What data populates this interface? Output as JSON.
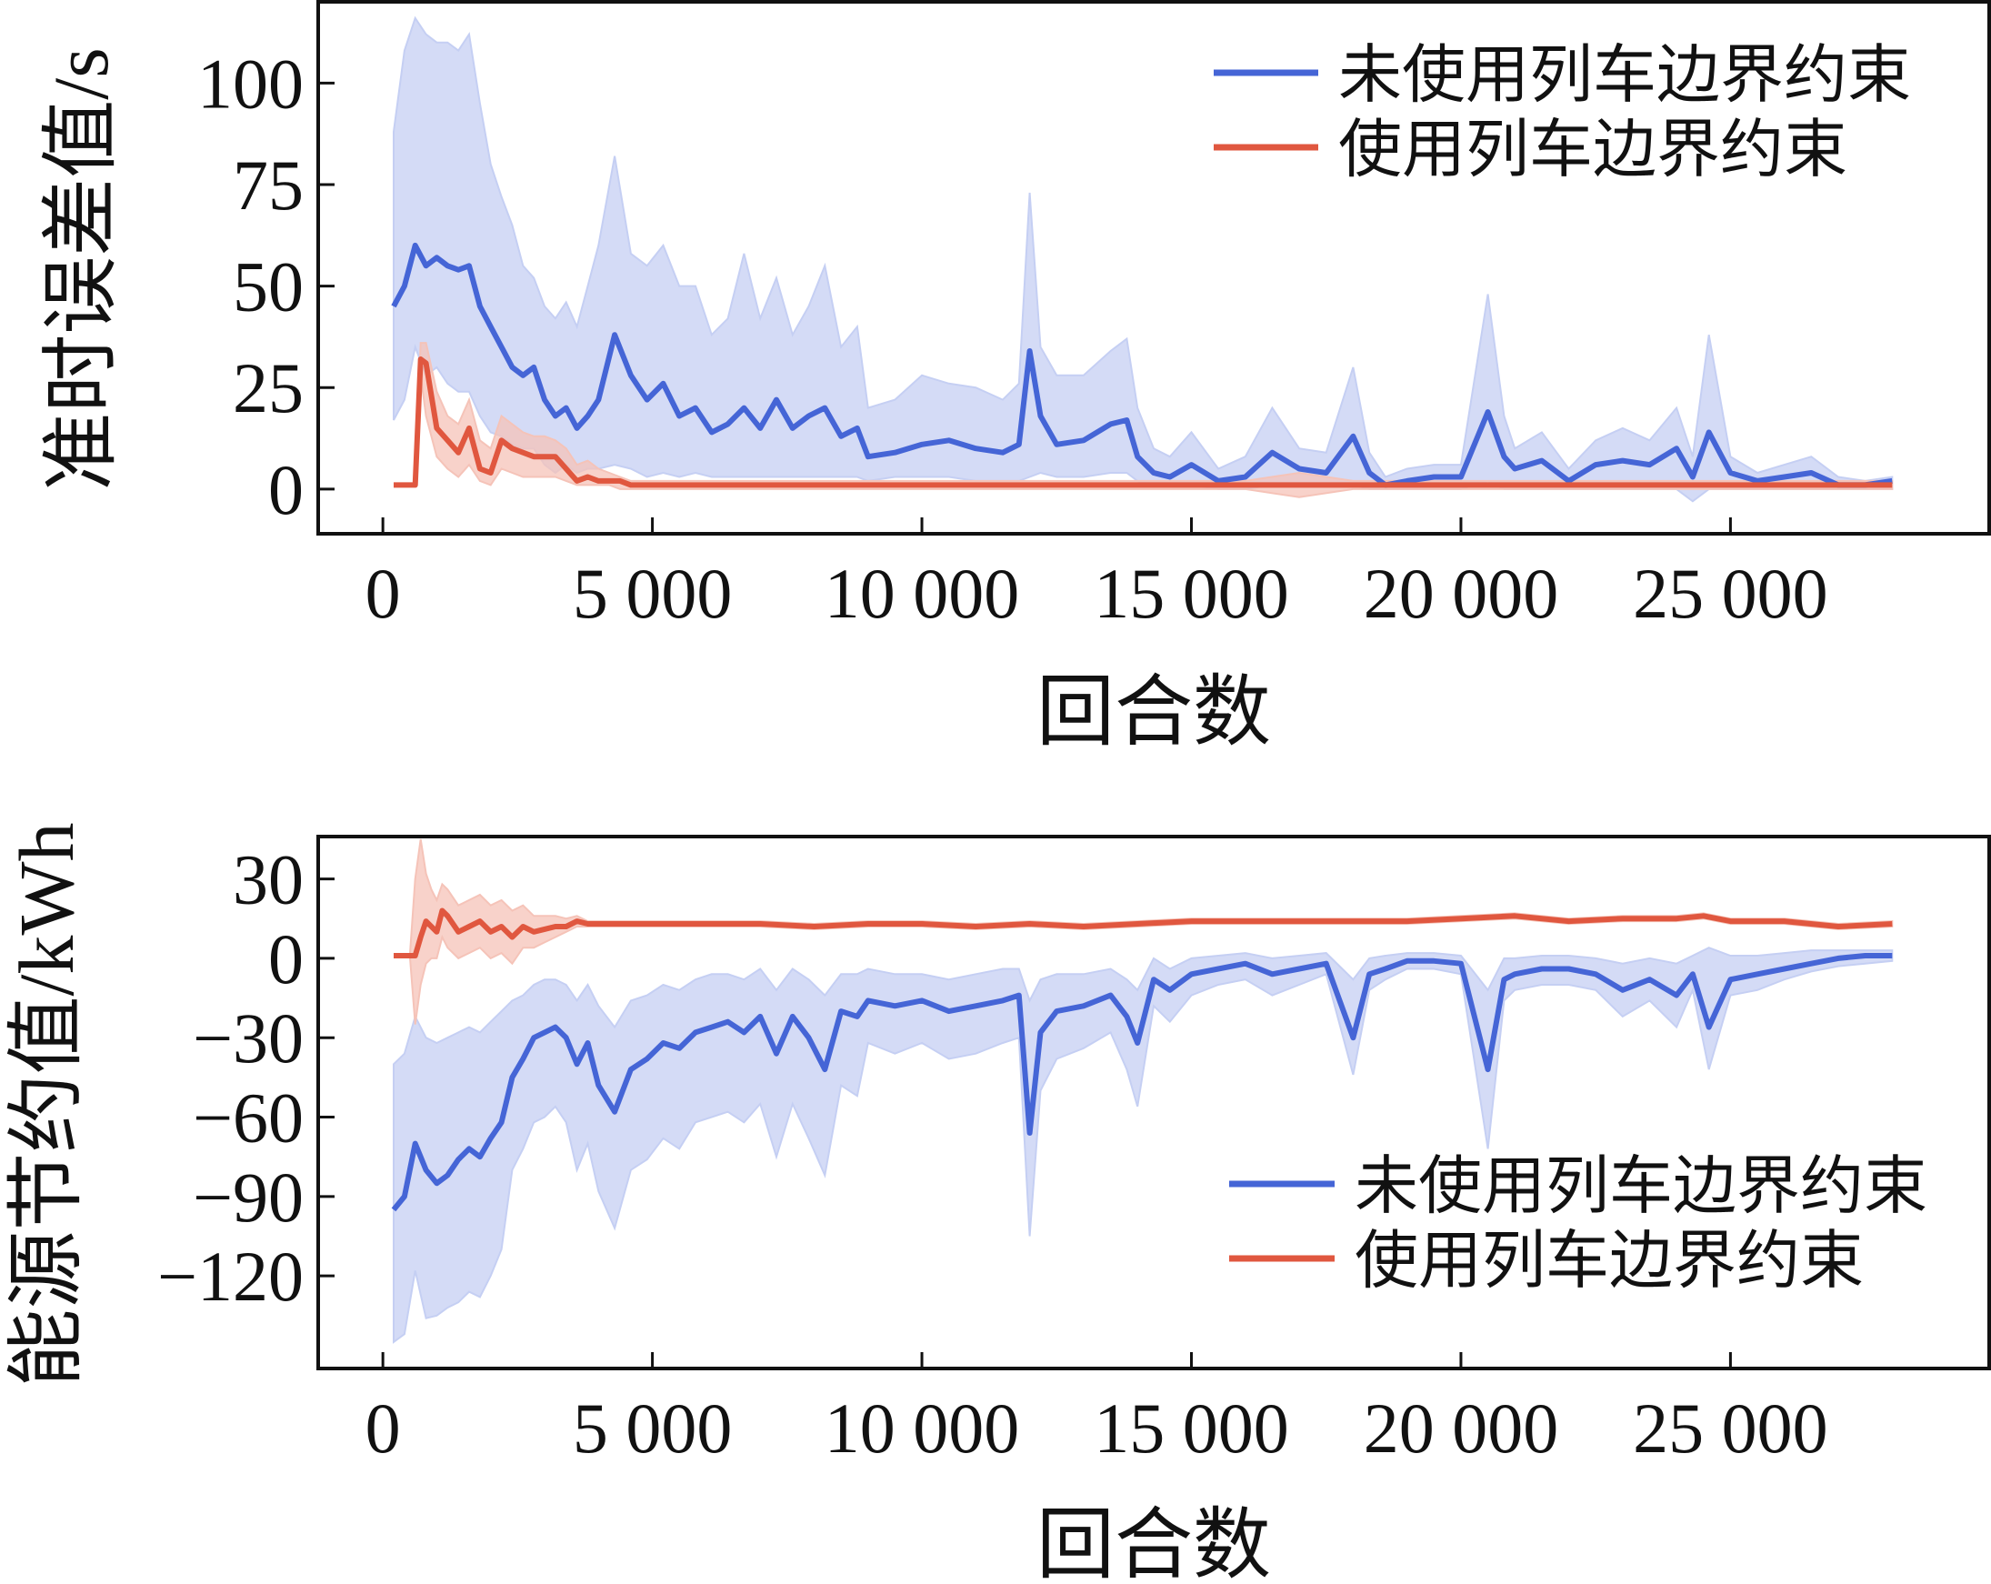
{
  "colors": {
    "blue": "#4565d6",
    "blue_band": "#c5cff3",
    "red": "#e0573f",
    "red_band": "#f5c3b8",
    "axis": "#111111"
  },
  "chart_data": [
    {
      "type": "line",
      "xlabel": "回合数",
      "ylabel": "准时误差值/s",
      "xlim": [
        -1200,
        29800
      ],
      "ylim": [
        -11,
        120
      ],
      "xticks": [
        0,
        5000,
        10000,
        15000,
        20000,
        25000
      ],
      "xtick_labels": [
        "0",
        "5 000",
        "10 000",
        "15 000",
        "20 000",
        "25 000"
      ],
      "yticks": [
        0,
        25,
        50,
        75,
        100
      ],
      "ytick_labels": [
        "0",
        "25",
        "50",
        "75",
        "100"
      ],
      "legend_position": "upper-right",
      "grid": false,
      "series": [
        {
          "name": "未使用列车边界约束",
          "color_key": "blue",
          "x": [
            200,
            400,
            600,
            800,
            1000,
            1200,
            1400,
            1600,
            1800,
            2000,
            2200,
            2400,
            2600,
            2800,
            3000,
            3200,
            3400,
            3600,
            3800,
            4000,
            4300,
            4600,
            4900,
            5200,
            5500,
            5800,
            6100,
            6400,
            6700,
            7000,
            7300,
            7600,
            7900,
            8200,
            8500,
            8800,
            9000,
            9500,
            10000,
            10500,
            11000,
            11500,
            11800,
            12000,
            12200,
            12500,
            13000,
            13500,
            13800,
            14000,
            14300,
            14600,
            15000,
            15500,
            16000,
            16500,
            17000,
            17500,
            18000,
            18300,
            18600,
            19000,
            19500,
            20000,
            20500,
            20800,
            21000,
            21500,
            22000,
            22500,
            23000,
            23500,
            24000,
            24300,
            24600,
            25000,
            25500,
            26000,
            26500,
            27000,
            27500,
            28000
          ],
          "values": [
            45,
            50,
            60,
            55,
            57,
            55,
            54,
            55,
            45,
            40,
            35,
            30,
            28,
            30,
            22,
            18,
            20,
            15,
            18,
            22,
            38,
            28,
            22,
            26,
            18,
            20,
            14,
            16,
            20,
            15,
            22,
            15,
            18,
            20,
            13,
            15,
            8,
            9,
            11,
            12,
            10,
            9,
            11,
            34,
            18,
            11,
            12,
            16,
            17,
            8,
            4,
            3,
            6,
            2,
            3,
            9,
            5,
            4,
            13,
            4,
            1,
            2,
            3,
            3,
            19,
            8,
            5,
            7,
            2,
            6,
            7,
            6,
            10,
            3,
            14,
            4,
            2,
            3,
            4,
            1,
            1,
            2
          ],
          "band_low": [
            17,
            22,
            35,
            28,
            30,
            26,
            24,
            24,
            18,
            14,
            13,
            11,
            10,
            10,
            6,
            4,
            6,
            4,
            5,
            5,
            6,
            5,
            3,
            4,
            3,
            4,
            3,
            3,
            3,
            3,
            3,
            3,
            3,
            3,
            3,
            3,
            2,
            3,
            3,
            3,
            2,
            2,
            2,
            3,
            4,
            3,
            3,
            4,
            4,
            2,
            1,
            1,
            1,
            0,
            0,
            1,
            1,
            1,
            1,
            0,
            0,
            0,
            0,
            0,
            2,
            0,
            0,
            0,
            0,
            0,
            0,
            0,
            0,
            -3,
            0,
            0,
            0,
            0,
            0,
            0,
            0,
            0
          ],
          "band_high": [
            88,
            108,
            116,
            112,
            110,
            110,
            108,
            112,
            95,
            80,
            72,
            65,
            55,
            52,
            45,
            42,
            46,
            40,
            50,
            60,
            82,
            58,
            55,
            60,
            50,
            50,
            38,
            42,
            58,
            42,
            52,
            38,
            45,
            55,
            35,
            40,
            20,
            22,
            28,
            26,
            25,
            22,
            26,
            73,
            35,
            28,
            28,
            34,
            37,
            20,
            10,
            8,
            14,
            5,
            8,
            20,
            10,
            9,
            30,
            9,
            3,
            5,
            6,
            6,
            48,
            18,
            10,
            14,
            5,
            12,
            15,
            12,
            20,
            8,
            38,
            8,
            4,
            6,
            8,
            3,
            2,
            3
          ]
        },
        {
          "name": "使用列车边界约束",
          "color_key": "red",
          "x": [
            200,
            400,
            600,
            700,
            800,
            1000,
            1200,
            1400,
            1600,
            1800,
            2000,
            2200,
            2400,
            2600,
            2800,
            3000,
            3200,
            3400,
            3600,
            3800,
            4000,
            4200,
            4400,
            4600,
            5000,
            6000,
            7000,
            8000,
            9000,
            10000,
            11000,
            12000,
            13000,
            14000,
            15000,
            16000,
            17000,
            18000,
            19000,
            20000,
            21000,
            22000,
            23000,
            24000,
            25000,
            26000,
            27000,
            28000
          ],
          "values": [
            1,
            1,
            1,
            32,
            31,
            15,
            12,
            9,
            15,
            5,
            4,
            12,
            10,
            9,
            8,
            8,
            8,
            5,
            2,
            3,
            2,
            2,
            2,
            1,
            1,
            1,
            1,
            1,
            1,
            1,
            1,
            1,
            1,
            1,
            1,
            1,
            1,
            1,
            1,
            1,
            1,
            1,
            1,
            1,
            1,
            1,
            1,
            1
          ],
          "band_low": [
            1,
            1,
            1,
            28,
            18,
            8,
            5,
            3,
            6,
            2,
            1,
            5,
            4,
            3,
            3,
            3,
            3,
            2,
            1,
            1,
            1,
            1,
            0,
            0,
            0,
            0,
            0,
            0,
            0,
            0,
            0,
            0,
            0,
            0,
            0,
            0,
            -2,
            0,
            0,
            0,
            0,
            0,
            0,
            0,
            0,
            0,
            0,
            0
          ],
          "band_high": [
            1,
            1,
            1,
            36,
            36,
            24,
            18,
            16,
            22,
            12,
            10,
            18,
            16,
            14,
            13,
            13,
            12,
            10,
            6,
            7,
            5,
            4,
            3,
            2,
            2,
            2,
            2,
            2,
            2,
            2,
            2,
            2,
            2,
            2,
            2,
            2,
            4,
            2,
            2,
            2,
            2,
            2,
            2,
            2,
            2,
            2,
            2,
            2
          ]
        }
      ]
    },
    {
      "type": "line",
      "xlabel": "回合数",
      "ylabel": "能源节约值/kWh",
      "xlim": [
        -1200,
        29800
      ],
      "ylim": [
        -155,
        46
      ],
      "xticks": [
        0,
        5000,
        10000,
        15000,
        20000,
        25000
      ],
      "xtick_labels": [
        "0",
        "5 000",
        "10 000",
        "15 000",
        "20 000",
        "25 000"
      ],
      "yticks": [
        -120,
        -90,
        -60,
        -30,
        0,
        30
      ],
      "ytick_labels": [
        "−120",
        "−90",
        "−60",
        "−30",
        "0",
        "30"
      ],
      "legend_position": "lower-right",
      "grid": false,
      "series": [
        {
          "name": "未使用列车边界约束",
          "color_key": "blue",
          "x": [
            200,
            400,
            600,
            800,
            1000,
            1200,
            1400,
            1600,
            1800,
            2000,
            2200,
            2400,
            2600,
            2800,
            3000,
            3200,
            3400,
            3600,
            3800,
            4000,
            4300,
            4600,
            4900,
            5200,
            5500,
            5800,
            6100,
            6400,
            6700,
            7000,
            7300,
            7600,
            7900,
            8200,
            8500,
            8800,
            9000,
            9500,
            10000,
            10500,
            11000,
            11500,
            11800,
            12000,
            12200,
            12500,
            13000,
            13500,
            13800,
            14000,
            14300,
            14600,
            15000,
            15500,
            16000,
            16500,
            17000,
            17500,
            18000,
            18300,
            18600,
            19000,
            19500,
            20000,
            20500,
            20800,
            21000,
            21500,
            22000,
            22500,
            23000,
            23500,
            24000,
            24300,
            24600,
            25000,
            25500,
            26000,
            26500,
            27000,
            27500,
            28000
          ],
          "values": [
            -95,
            -90,
            -70,
            -80,
            -85,
            -82,
            -76,
            -72,
            -75,
            -68,
            -62,
            -45,
            -38,
            -30,
            -28,
            -26,
            -30,
            -40,
            -32,
            -48,
            -58,
            -42,
            -38,
            -32,
            -34,
            -28,
            -26,
            -24,
            -28,
            -22,
            -36,
            -22,
            -30,
            -42,
            -20,
            -22,
            -16,
            -18,
            -16,
            -20,
            -18,
            -16,
            -14,
            -66,
            -28,
            -20,
            -18,
            -14,
            -22,
            -32,
            -8,
            -12,
            -6,
            -4,
            -2,
            -6,
            -4,
            -2,
            -30,
            -6,
            -4,
            -1,
            -1,
            -2,
            -42,
            -8,
            -6,
            -4,
            -4,
            -6,
            -12,
            -8,
            -14,
            -6,
            -26,
            -8,
            -6,
            -4,
            -2,
            0,
            1,
            1
          ],
          "band_low": [
            -145,
            -142,
            -118,
            -136,
            -135,
            -132,
            -130,
            -126,
            -128,
            -120,
            -110,
            -80,
            -72,
            -62,
            -60,
            -56,
            -62,
            -80,
            -70,
            -88,
            -102,
            -80,
            -76,
            -68,
            -72,
            -62,
            -60,
            -58,
            -62,
            -55,
            -75,
            -55,
            -68,
            -82,
            -48,
            -52,
            -32,
            -36,
            -32,
            -38,
            -36,
            -32,
            -30,
            -105,
            -50,
            -38,
            -34,
            -28,
            -42,
            -56,
            -18,
            -24,
            -14,
            -10,
            -8,
            -14,
            -10,
            -6,
            -44,
            -12,
            -8,
            -4,
            -4,
            -6,
            -72,
            -16,
            -12,
            -10,
            -10,
            -12,
            -22,
            -16,
            -26,
            -12,
            -42,
            -14,
            -12,
            -8,
            -5,
            -3,
            -2,
            -1
          ],
          "band_high": [
            -40,
            -36,
            -22,
            -30,
            -32,
            -30,
            -28,
            -26,
            -28,
            -24,
            -20,
            -16,
            -14,
            -10,
            -8,
            -8,
            -10,
            -16,
            -10,
            -18,
            -26,
            -16,
            -14,
            -10,
            -12,
            -8,
            -6,
            -6,
            -8,
            -4,
            -12,
            -4,
            -8,
            -14,
            -6,
            -6,
            -4,
            -6,
            -6,
            -8,
            -6,
            -4,
            -4,
            -16,
            -8,
            -6,
            -6,
            -4,
            -8,
            -12,
            0,
            -4,
            0,
            1,
            2,
            0,
            1,
            2,
            -8,
            0,
            1,
            2,
            2,
            1,
            -12,
            0,
            0,
            1,
            1,
            0,
            -2,
            0,
            -2,
            1,
            4,
            1,
            1,
            2,
            3,
            3,
            3,
            3
          ]
        },
        {
          "name": "使用列车边界约束",
          "color_key": "red",
          "x": [
            200,
            400,
            500,
            600,
            700,
            800,
            900,
            1000,
            1100,
            1200,
            1400,
            1600,
            1800,
            2000,
            2200,
            2400,
            2600,
            2800,
            3000,
            3200,
            3400,
            3600,
            3800,
            4000,
            4500,
            5000,
            6000,
            7000,
            8000,
            9000,
            10000,
            11000,
            12000,
            13000,
            14000,
            15000,
            16000,
            17000,
            18000,
            19000,
            20000,
            21000,
            22000,
            23000,
            24000,
            24500,
            25000,
            26000,
            27000,
            28000
          ],
          "values": [
            1,
            1,
            1,
            1,
            8,
            14,
            12,
            10,
            18,
            16,
            10,
            12,
            14,
            10,
            12,
            8,
            12,
            10,
            11,
            12,
            12,
            14,
            13,
            13,
            13,
            13,
            13,
            13,
            12,
            13,
            13,
            12,
            13,
            12,
            13,
            14,
            14,
            14,
            14,
            14,
            15,
            16,
            14,
            15,
            15,
            16,
            14,
            14,
            12,
            13
          ],
          "band_low": [
            1,
            1,
            1,
            -25,
            -10,
            -2,
            0,
            0,
            8,
            4,
            0,
            2,
            4,
            0,
            2,
            -2,
            4,
            4,
            6,
            8,
            10,
            12,
            12,
            12,
            12,
            12,
            12,
            12,
            11,
            12,
            12,
            11,
            12,
            11,
            12,
            13,
            13,
            13,
            13,
            13,
            14,
            15,
            13,
            14,
            14,
            15,
            13,
            13,
            11,
            12
          ],
          "band_high": [
            1,
            1,
            1,
            30,
            45,
            32,
            26,
            22,
            28,
            26,
            20,
            22,
            24,
            20,
            22,
            18,
            20,
            16,
            16,
            16,
            15,
            16,
            14,
            14,
            14,
            14,
            14,
            14,
            13,
            14,
            14,
            13,
            14,
            13,
            14,
            15,
            15,
            15,
            15,
            15,
            16,
            17,
            15,
            16,
            16,
            17,
            15,
            15,
            13,
            14
          ]
        }
      ]
    }
  ]
}
